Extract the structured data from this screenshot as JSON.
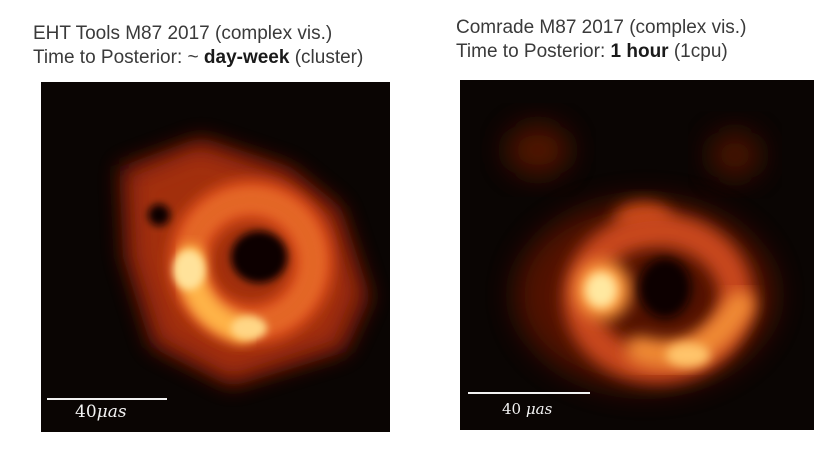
{
  "left": {
    "title_line1": "EHT Tools M87 2017 (complex vis.)",
    "title_line2_prefix": "Time to Posterior: ~ ",
    "title_line2_bold": "day-week",
    "title_line2_suffix": " (cluster)",
    "scalebar_number": "40",
    "scalebar_unit": "μas"
  },
  "right": {
    "title_line1": "Comrade M87 2017 (complex vis.)",
    "title_line2_prefix": "Time to Posterior: ",
    "title_line2_bold": "1 hour",
    "title_line2_suffix": " (1cpu)",
    "scalebar_number": "40",
    "scalebar_unit": "μas"
  },
  "colors": {
    "background": "#0a0503",
    "hot_core": "#fff3b0",
    "bright": "#ffb347",
    "mid": "#e0581c",
    "dim": "#7a1a08"
  }
}
